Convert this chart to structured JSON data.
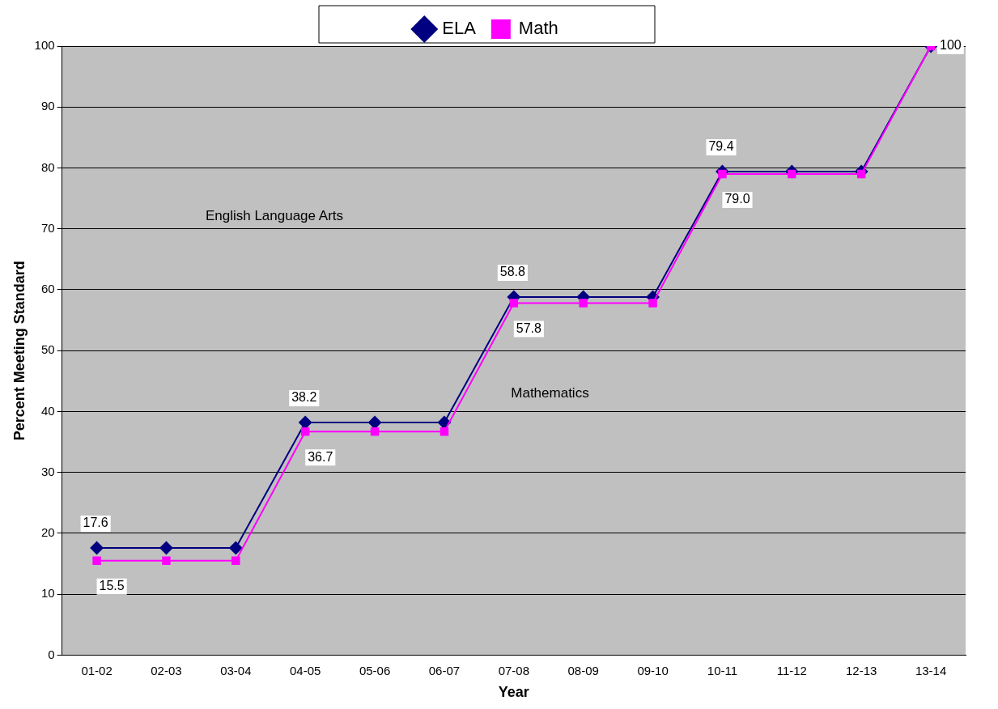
{
  "chart_data": {
    "type": "line",
    "xlabel": "Year",
    "ylabel": "Percent Meeting Standard",
    "categories": [
      "01-02",
      "02-03",
      "03-04",
      "04-05",
      "05-06",
      "06-07",
      "07-08",
      "08-09",
      "09-10",
      "10-11",
      "11-12",
      "12-13",
      "13-14"
    ],
    "series": [
      {
        "name": "ELA",
        "color": "#000080",
        "marker": "diamond",
        "values": [
          17.6,
          17.6,
          17.6,
          38.2,
          38.2,
          38.2,
          58.8,
          58.8,
          58.8,
          79.4,
          79.4,
          79.4,
          100
        ],
        "value_labels": [
          "17.6",
          null,
          null,
          "38.2",
          null,
          null,
          "58.8",
          null,
          null,
          "79.4",
          null,
          null,
          null
        ]
      },
      {
        "name": "Math",
        "color": "#ff00ff",
        "marker": "square",
        "values": [
          15.5,
          15.5,
          15.5,
          36.7,
          36.7,
          36.7,
          57.8,
          57.8,
          57.8,
          79.0,
          79.0,
          79.0,
          100
        ],
        "value_labels": [
          "15.5",
          null,
          null,
          "36.7",
          null,
          null,
          "57.8",
          null,
          null,
          "79.0",
          null,
          null,
          "100"
        ]
      }
    ],
    "annotations": [
      "English Language Arts",
      "Mathematics"
    ],
    "ylim": [
      0,
      100
    ],
    "yticks": [
      0,
      10,
      20,
      30,
      40,
      50,
      60,
      70,
      80,
      90,
      100
    ],
    "grid": "y",
    "legend": "top"
  }
}
